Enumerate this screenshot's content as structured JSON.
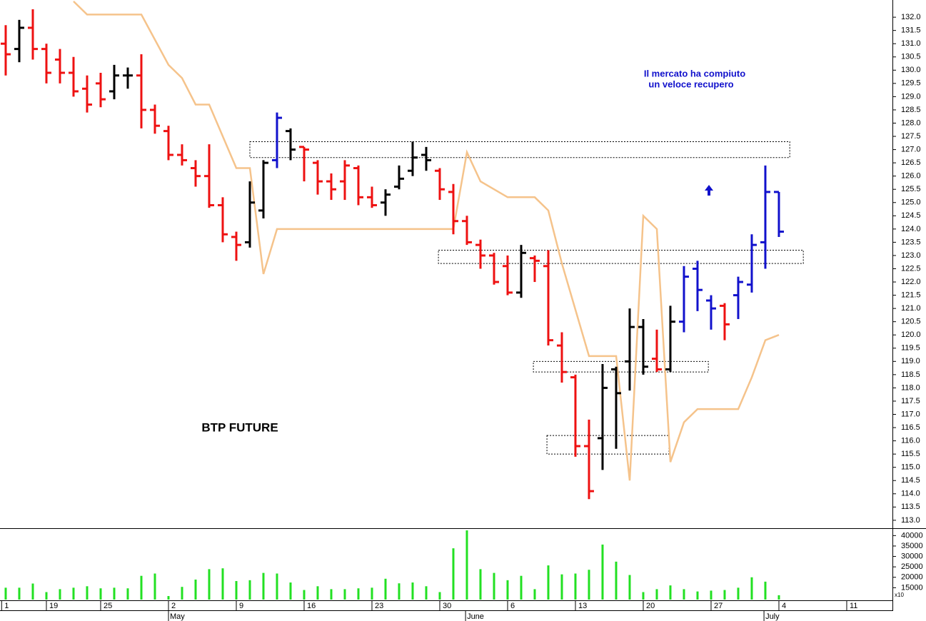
{
  "chart_data": [
    {
      "type": "ohlc",
      "x": [
        0,
        1,
        2,
        3,
        4,
        5,
        6,
        7,
        8,
        9,
        10,
        11,
        12,
        13,
        14,
        15,
        16,
        17,
        18,
        19,
        20,
        21,
        22,
        23,
        24,
        25,
        26,
        27,
        28,
        29,
        30,
        31,
        32,
        33,
        34,
        35,
        36,
        37,
        38,
        39,
        40,
        41,
        42,
        43,
        44,
        45,
        46,
        47,
        48,
        49,
        50,
        51,
        52,
        53,
        54,
        55,
        56,
        57
      ],
      "open": [
        131.0,
        130.8,
        131.6,
        130.8,
        130.4,
        129.9,
        129.3,
        129.5,
        129.2,
        129.8,
        129.8,
        128.5,
        127.7,
        126.8,
        126.3,
        126.0,
        124.9,
        123.7,
        123.5,
        124.7,
        126.6,
        127.7,
        127.1,
        126.5,
        125.8,
        125.8,
        126.3,
        125.2,
        125.0,
        125.6,
        126.2,
        126.8,
        126.2,
        125.4,
        124.3,
        123.4,
        123.0,
        122.6,
        121.6,
        122.9,
        122.6,
        119.6,
        118.4,
        115.8,
        116.1,
        118.7,
        119.0,
        120.3,
        119.1,
        118.7,
        120.5,
        122.5,
        121.3,
        121.1,
        121.5,
        121.9,
        123.5,
        125.4
      ],
      "high": [
        131.7,
        131.9,
        132.3,
        131.0,
        130.8,
        130.5,
        129.8,
        129.9,
        130.2,
        130.1,
        130.6,
        128.7,
        127.9,
        127.2,
        126.6,
        127.2,
        125.2,
        123.9,
        125.8,
        126.6,
        128.4,
        127.8,
        127.1,
        126.6,
        126.1,
        126.6,
        126.4,
        125.6,
        125.5,
        126.4,
        127.3,
        127.1,
        126.3,
        125.7,
        124.5,
        123.6,
        123.1,
        123.0,
        123.4,
        123.0,
        123.2,
        120.1,
        118.5,
        116.8,
        118.9,
        118.8,
        121.0,
        120.6,
        120.2,
        121.1,
        122.6,
        122.8,
        121.5,
        121.2,
        122.2,
        123.8,
        126.4,
        125.4
      ],
      "low": [
        129.8,
        130.3,
        130.4,
        129.5,
        129.5,
        129.0,
        128.4,
        128.6,
        128.9,
        129.3,
        127.8,
        127.6,
        126.6,
        126.4,
        125.6,
        124.8,
        123.5,
        122.8,
        123.3,
        124.4,
        126.3,
        126.6,
        125.8,
        125.3,
        125.1,
        125.1,
        124.9,
        124.8,
        124.5,
        125.5,
        126.0,
        126.2,
        125.1,
        123.8,
        123.4,
        122.5,
        121.9,
        121.5,
        121.4,
        122.0,
        119.6,
        118.2,
        115.4,
        113.8,
        114.9,
        115.7,
        117.9,
        118.5,
        118.6,
        118.6,
        120.1,
        120.9,
        120.2,
        119.8,
        120.6,
        121.6,
        122.5,
        123.7
      ],
      "close": [
        130.6,
        131.6,
        130.8,
        129.9,
        129.9,
        129.2,
        128.7,
        128.9,
        129.8,
        129.8,
        128.5,
        127.9,
        126.8,
        126.6,
        126.0,
        124.9,
        123.8,
        123.4,
        125.0,
        126.5,
        128.2,
        127.0,
        127.0,
        125.8,
        125.5,
        126.4,
        125.2,
        124.9,
        125.3,
        125.9,
        126.7,
        126.6,
        125.5,
        124.3,
        123.5,
        123.0,
        122.0,
        121.6,
        123.1,
        122.8,
        119.8,
        118.6,
        115.8,
        114.1,
        118.0,
        117.8,
        120.3,
        118.8,
        118.7,
        120.5,
        122.2,
        121.7,
        121.0,
        120.4,
        122.0,
        123.4,
        125.4,
        123.9
      ],
      "colors": [
        "#ee1111",
        "#000000",
        "#ee1111",
        "#ee1111",
        "#ee1111",
        "#ee1111",
        "#ee1111",
        "#ee1111",
        "#000000",
        "#000000",
        "#ee1111",
        "#ee1111",
        "#ee1111",
        "#ee1111",
        "#ee1111",
        "#ee1111",
        "#ee1111",
        "#ee1111",
        "#000000",
        "#000000",
        "#1111cc",
        "#000000",
        "#ee1111",
        "#ee1111",
        "#ee1111",
        "#ee1111",
        "#ee1111",
        "#ee1111",
        "#000000",
        "#000000",
        "#000000",
        "#000000",
        "#ee1111",
        "#ee1111",
        "#ee1111",
        "#ee1111",
        "#ee1111",
        "#ee1111",
        "#000000",
        "#ee1111",
        "#ee1111",
        "#ee1111",
        "#ee1111",
        "#ee1111",
        "#000000",
        "#000000",
        "#000000",
        "#000000",
        "#ee1111",
        "#000000",
        "#1111cc",
        "#1111cc",
        "#1111cc",
        "#ee1111",
        "#1111cc",
        "#1111cc",
        "#1111cc",
        "#1111cc"
      ],
      "line": {
        "color": "#f5c38b",
        "x": [
          5,
          6,
          10,
          12,
          13,
          14,
          15,
          17,
          18,
          19,
          20,
          33,
          34,
          35,
          37,
          39,
          40,
          41,
          43,
          45,
          46,
          47,
          48,
          49,
          50,
          51,
          54,
          55,
          56,
          57
        ],
        "values": [
          132.6,
          132.1,
          132.1,
          130.2,
          129.7,
          128.7,
          128.7,
          126.3,
          126.3,
          122.3,
          124.0,
          124.0,
          126.9,
          125.8,
          125.2,
          125.2,
          124.7,
          122.7,
          119.2,
          119.2,
          114.5,
          124.5,
          124.0,
          115.2,
          116.7,
          117.2,
          117.2,
          118.4,
          119.8,
          120.0
        ]
      },
      "zones": [
        {
          "x": [
            18.0,
            57.8
          ],
          "y": [
            126.7,
            127.3
          ]
        },
        {
          "x": [
            31.9,
            58.8
          ],
          "y": [
            122.7,
            123.2
          ]
        },
        {
          "x": [
            38.9,
            51.8
          ],
          "y": [
            118.6,
            119.0
          ]
        },
        {
          "x": [
            39.9,
            48.9
          ],
          "y": [
            115.5,
            116.2
          ]
        }
      ],
      "annotations": [
        "Il mercato ha compiuto",
        "un veloce recupero",
        "BTP FUTURE"
      ],
      "xlim": [
        -0.42,
        65.37
      ],
      "ylim": [
        112.7,
        132.65
      ],
      "yticks": [
        {
          "value": 113.0,
          "label": "113.0"
        },
        {
          "value": 113.5,
          "label": "113.5"
        },
        {
          "value": 114.0,
          "label": "114.0"
        },
        {
          "value": 114.5,
          "label": "114.5"
        },
        {
          "value": 115.0,
          "label": "115.0"
        },
        {
          "value": 115.5,
          "label": "115.5"
        },
        {
          "value": 116.0,
          "label": "116.0"
        },
        {
          "value": 116.5,
          "label": "116.5"
        },
        {
          "value": 117.0,
          "label": "117.0"
        },
        {
          "value": 117.5,
          "label": "117.5"
        },
        {
          "value": 118.0,
          "label": "118.0"
        },
        {
          "value": 118.5,
          "label": "118.5"
        },
        {
          "value": 119.0,
          "label": "119.0"
        },
        {
          "value": 119.5,
          "label": "119.5"
        },
        {
          "value": 120.0,
          "label": "120.0"
        },
        {
          "value": 120.5,
          "label": "120.5"
        },
        {
          "value": 121.0,
          "label": "121.0"
        },
        {
          "value": 121.5,
          "label": "121.5"
        },
        {
          "value": 122.0,
          "label": "122.0"
        },
        {
          "value": 122.5,
          "label": "122.5"
        },
        {
          "value": 123.0,
          "label": "123.0"
        },
        {
          "value": 123.5,
          "label": "123.5"
        },
        {
          "value": 124.0,
          "label": "124.0"
        },
        {
          "value": 124.5,
          "label": "124.5"
        },
        {
          "value": 125.0,
          "label": "125.0"
        },
        {
          "value": 125.5,
          "label": "125.5"
        },
        {
          "value": 126.0,
          "label": "126.0"
        },
        {
          "value": 126.5,
          "label": "126.5"
        },
        {
          "value": 127.0,
          "label": "127.0"
        },
        {
          "value": 127.5,
          "label": "127.5"
        },
        {
          "value": 128.0,
          "label": "128.0"
        },
        {
          "value": 128.5,
          "label": "128.5"
        },
        {
          "value": 129.0,
          "label": "129.0"
        },
        {
          "value": 129.5,
          "label": "129.5"
        },
        {
          "value": 130.0,
          "label": "130.0"
        },
        {
          "value": 130.5,
          "label": "130.5"
        },
        {
          "value": 131.0,
          "label": "131.0"
        },
        {
          "value": 131.5,
          "label": "131.5"
        },
        {
          "value": 132.0,
          "label": "132.0"
        }
      ]
    },
    {
      "type": "bar",
      "x": [
        0,
        1,
        2,
        3,
        4,
        5,
        6,
        7,
        8,
        9,
        10,
        11,
        12,
        13,
        14,
        15,
        16,
        17,
        18,
        19,
        20,
        21,
        22,
        23,
        24,
        25,
        26,
        27,
        28,
        29,
        30,
        31,
        32,
        33,
        34,
        35,
        36,
        37,
        38,
        39,
        40,
        41,
        42,
        43,
        44,
        45,
        46,
        47,
        48,
        49,
        50,
        51,
        52,
        53,
        54,
        55,
        56,
        57
      ],
      "values": [
        15000,
        15000,
        17000,
        12900,
        14300,
        15000,
        15700,
        14700,
        15000,
        14700,
        20700,
        21800,
        11000,
        15400,
        18900,
        23900,
        24300,
        18200,
        18600,
        22100,
        21800,
        17500,
        13900,
        15700,
        14300,
        14300,
        14700,
        15000,
        19300,
        17100,
        17500,
        15700,
        12900,
        33900,
        42500,
        23900,
        22100,
        18600,
        20700,
        14300,
        25700,
        21400,
        21800,
        23600,
        35700,
        27500,
        21100,
        12900,
        14300,
        16100,
        14300,
        13200,
        13600,
        13900,
        15000,
        20000,
        17900,
        11400
      ],
      "color": "#22e022",
      "axis_note": "x10",
      "xlim": [
        -0.42,
        65.37
      ],
      "ylim": [
        9300,
        43200
      ],
      "yticks": [
        15000,
        20000,
        25000,
        30000,
        35000,
        40000
      ],
      "xticks": [
        {
          "value": -0.3,
          "label": "1"
        },
        {
          "value": 3,
          "label": "19"
        },
        {
          "value": 7,
          "label": "25"
        },
        {
          "value": 12,
          "label": "2"
        },
        {
          "value": 17,
          "label": "9"
        },
        {
          "value": 22,
          "label": "16"
        },
        {
          "value": 27,
          "label": "23"
        },
        {
          "value": 32,
          "label": "30"
        },
        {
          "value": 37,
          "label": "6"
        },
        {
          "value": 42,
          "label": "13"
        },
        {
          "value": 47,
          "label": "20"
        },
        {
          "value": 52,
          "label": "27"
        },
        {
          "value": 57,
          "label": "4"
        },
        {
          "value": 62,
          "label": "11"
        }
      ],
      "month_ticks": [
        {
          "value": 12,
          "label": "May"
        },
        {
          "value": 33.9,
          "label": "June"
        },
        {
          "value": 55.9,
          "label": "July"
        }
      ]
    }
  ]
}
